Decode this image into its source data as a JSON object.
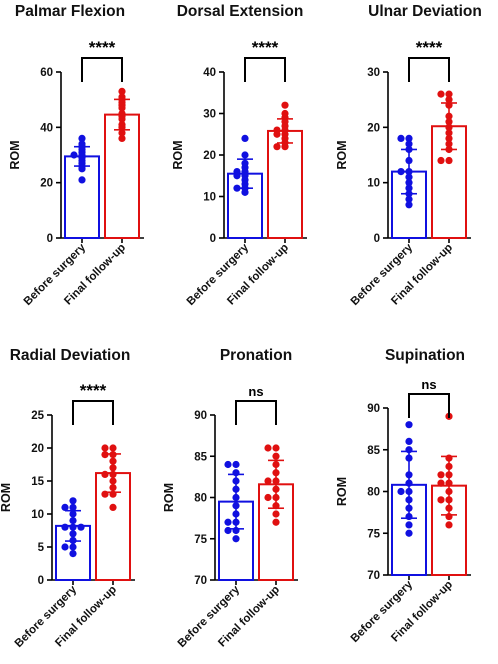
{
  "colors": {
    "before": "#1010e0",
    "after": "#e01010",
    "axis": "#000000"
  },
  "chart_data": [
    {
      "type": "bar",
      "title": "Palmar Flexion",
      "ylabel": "ROM",
      "categories": [
        "Before surgery",
        "Final follow-up"
      ],
      "ylim": [
        0,
        60
      ],
      "yticks": [
        0,
        20,
        40,
        60
      ],
      "series": [
        {
          "mean": 29.5,
          "sd": 3.5,
          "points": [
            36,
            34,
            33,
            32,
            31,
            30,
            30,
            29,
            28,
            27,
            26,
            25,
            21
          ]
        },
        {
          "mean": 44.6,
          "sd": 5.5,
          "points": [
            53,
            51,
            50,
            49,
            48,
            47,
            45,
            44,
            43,
            41,
            40,
            38,
            36
          ]
        }
      ],
      "significance": "****"
    },
    {
      "type": "bar",
      "title": "Dorsal Extension",
      "ylabel": "ROM",
      "categories": [
        "Before surgery",
        "Final follow-up"
      ],
      "ylim": [
        0,
        40
      ],
      "yticks": [
        0,
        10,
        20,
        30,
        40
      ],
      "series": [
        {
          "mean": 15.5,
          "sd": 3.5,
          "points": [
            24,
            20,
            18,
            17,
            16,
            16,
            15,
            15,
            14,
            13,
            12,
            12,
            11
          ]
        },
        {
          "mean": 25.8,
          "sd": 2.9,
          "points": [
            32,
            30,
            29,
            28,
            27,
            26,
            26,
            25,
            25,
            24,
            23,
            22,
            22
          ]
        }
      ],
      "significance": "****"
    },
    {
      "type": "bar",
      "title": "Ulnar Deviation",
      "ylabel": "ROM",
      "categories": [
        "Before surgery",
        "Final follow-up"
      ],
      "ylim": [
        0,
        30
      ],
      "yticks": [
        0,
        10,
        20,
        30
      ],
      "series": [
        {
          "mean": 12.0,
          "sd": 4.0,
          "points": [
            18,
            18,
            17,
            16,
            14,
            12,
            12,
            11,
            10,
            9,
            8,
            7,
            6
          ]
        },
        {
          "mean": 20.2,
          "sd": 4.2,
          "points": [
            26,
            26,
            25,
            24,
            22,
            21,
            20,
            19,
            18,
            17,
            16,
            14,
            14
          ]
        }
      ],
      "significance": "****"
    },
    {
      "type": "bar",
      "title": "Radial Deviation",
      "ylabel": "ROM",
      "categories": [
        "Before surgery",
        "Final follow-up"
      ],
      "ylim": [
        0,
        25
      ],
      "yticks": [
        0,
        5,
        10,
        15,
        20,
        25
      ],
      "series": [
        {
          "mean": 8.2,
          "sd": 2.3,
          "points": [
            12,
            11,
            11,
            10,
            9,
            8,
            8,
            8,
            7,
            6,
            5,
            5,
            4
          ]
        },
        {
          "mean": 16.2,
          "sd": 2.9,
          "points": [
            20,
            20,
            19,
            19,
            18,
            17,
            16,
            16,
            15,
            14,
            13,
            13,
            11
          ]
        }
      ],
      "significance": "****"
    },
    {
      "type": "bar",
      "title": "Pronation",
      "ylabel": "ROM",
      "categories": [
        "Before surgery",
        "Final follow-up"
      ],
      "ylim": [
        70,
        90
      ],
      "yticks": [
        70,
        75,
        80,
        85,
        90
      ],
      "series": [
        {
          "mean": 79.5,
          "sd": 3.3,
          "points": [
            84,
            84,
            83,
            82,
            81,
            80,
            79,
            78,
            77,
            77,
            76,
            76,
            75
          ]
        },
        {
          "mean": 81.6,
          "sd": 2.9,
          "points": [
            86,
            86,
            85,
            84,
            83,
            82,
            82,
            81,
            80,
            80,
            79,
            78,
            77
          ]
        }
      ],
      "significance": "ns"
    },
    {
      "type": "bar",
      "title": "Supination",
      "ylabel": "ROM",
      "categories": [
        "Before surgery",
        "Final follow-up"
      ],
      "ylim": [
        70,
        90
      ],
      "yticks": [
        70,
        75,
        80,
        85,
        90
      ],
      "series": [
        {
          "mean": 80.8,
          "sd": 4.0,
          "points": [
            88,
            86,
            85,
            84,
            82,
            81,
            80,
            80,
            79,
            78,
            77,
            76,
            75
          ]
        },
        {
          "mean": 80.7,
          "sd": 3.5,
          "points": [
            89,
            84,
            83,
            82,
            82,
            81,
            81,
            80,
            79,
            79,
            78,
            77,
            76
          ]
        }
      ],
      "significance": "ns"
    }
  ]
}
